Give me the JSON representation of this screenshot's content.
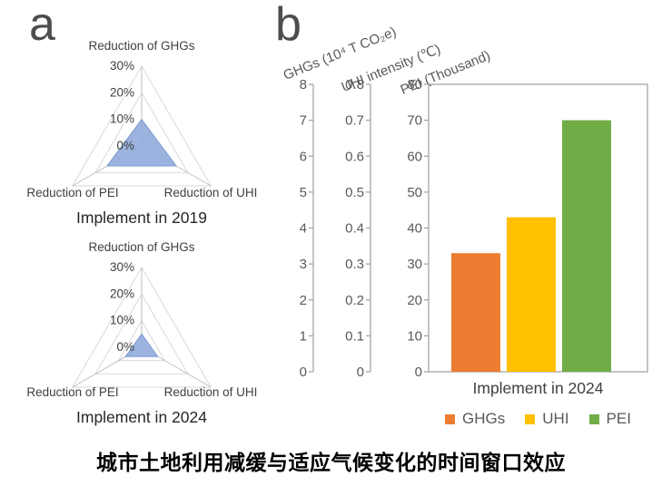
{
  "panel_labels": {
    "a": "a",
    "b": "b"
  },
  "caption": "城市土地利用减缓与适应气候变化的时间窗口效应",
  "colors": {
    "radar_fill": "#8EAADB",
    "radar_fill_opacity": "0.88",
    "radar_stroke": "#7E9CD0",
    "radar_grid": "#D9D9D9",
    "radar_spoke": "#BFBFBF",
    "axis_line": "#A6A6A6",
    "tick_text": "#595959",
    "radar_tick_text": "#404040"
  },
  "chart_data": [
    {
      "type": "radar",
      "title": "Implement in 2019",
      "categories": [
        "Reduction of GHGs",
        "Reduction of UHI",
        "Reduction of PEI"
      ],
      "values": [
        10,
        15,
        15
      ],
      "unit": "%",
      "axis": {
        "min": 0,
        "max": 30,
        "step": 10,
        "tick_labels": [
          "0%",
          "10%",
          "20%",
          "30%"
        ]
      },
      "grid": true
    },
    {
      "type": "radar",
      "title": "Implement in 2024",
      "categories": [
        "Reduction of GHGs",
        "Reduction of UHI",
        "Reduction of PEI"
      ],
      "values": [
        5,
        7,
        7
      ],
      "unit": "%",
      "axis": {
        "min": 0,
        "max": 30,
        "step": 10,
        "tick_labels": [
          "0%",
          "10%",
          "20%",
          "30%"
        ]
      },
      "grid": true
    },
    {
      "type": "bar",
      "categories": [
        "Implement in 2024"
      ],
      "series": [
        {
          "name": "GHGs",
          "axis_title": "GHGs (10⁴ T CO₂e)",
          "value": 3.3,
          "axis": {
            "min": 0,
            "max": 8,
            "step": 1,
            "tick_labels": [
              "0",
              "1",
              "2",
              "3",
              "4",
              "5",
              "6",
              "7",
              "8"
            ]
          },
          "color": "#ED7D31"
        },
        {
          "name": "UHI",
          "axis_title": "UHI intensity (℃)",
          "value": 0.43,
          "axis": {
            "min": 0,
            "max": 0.8,
            "step": 0.1,
            "tick_labels": [
              "0",
              "0.1",
              "0.2",
              "0.3",
              "0.4",
              "0.5",
              "0.6",
              "0.7",
              "0.8"
            ]
          },
          "color": "#FFC000"
        },
        {
          "name": "PEI",
          "axis_title": "PEI (Thousand)",
          "value": 70,
          "axis": {
            "min": 0,
            "max": 80,
            "step": 10,
            "tick_labels": [
              "0",
              "10",
              "20",
              "30",
              "40",
              "50",
              "60",
              "70",
              "80"
            ]
          },
          "color": "#70AD47"
        }
      ],
      "legend": [
        "GHGs",
        "UHI",
        "PEI"
      ],
      "legend_position": "bottom",
      "grid": false
    }
  ]
}
